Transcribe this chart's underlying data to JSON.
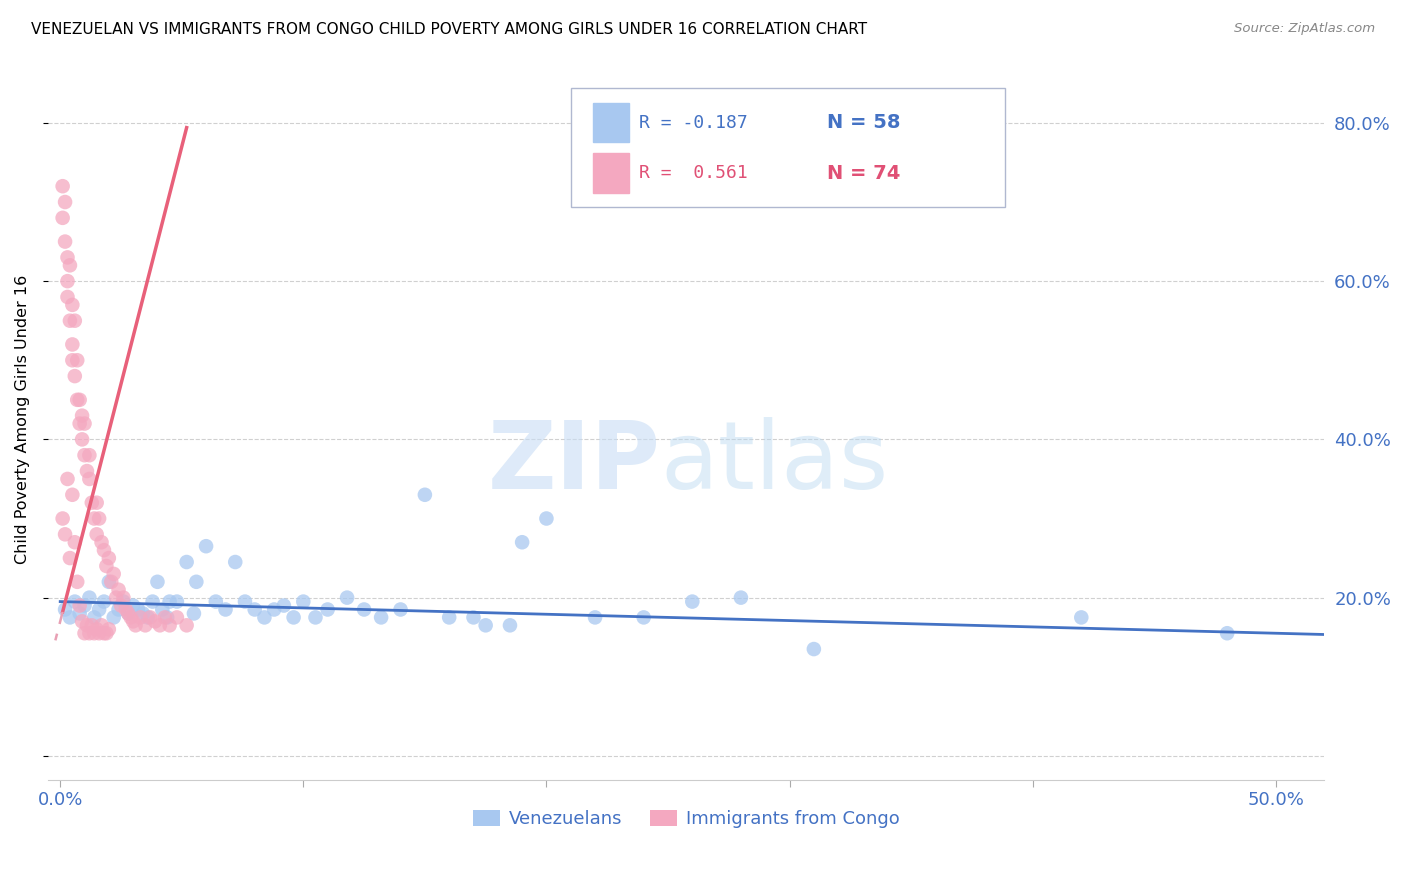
{
  "title": "VENEZUELAN VS IMMIGRANTS FROM CONGO CHILD POVERTY AMONG GIRLS UNDER 16 CORRELATION CHART",
  "source": "Source: ZipAtlas.com",
  "ylabel": "Child Poverty Among Girls Under 16",
  "y_ticks": [
    0.0,
    0.2,
    0.4,
    0.6,
    0.8
  ],
  "y_tick_labels_right": [
    "",
    "20.0%",
    "40.0%",
    "60.0%",
    "80.0%"
  ],
  "xlim": [
    -0.005,
    0.52
  ],
  "ylim": [
    -0.03,
    0.88
  ],
  "venezuelan_color": "#a8c8f0",
  "congo_color": "#f4a8c0",
  "trend_venezuelan_color": "#4472c4",
  "trend_congo_color": "#e8607a",
  "trend_congo_dashed_color": "#e8a0b4",
  "legend_R_venezuelan": "R = -0.187",
  "legend_N_venezuelan": "N = 58",
  "legend_R_congo": "R =  0.561",
  "legend_N_congo": "N = 74",
  "venezuelan_x": [
    0.002,
    0.004,
    0.006,
    0.008,
    0.01,
    0.012,
    0.014,
    0.016,
    0.018,
    0.02,
    0.022,
    0.024,
    0.026,
    0.028,
    0.03,
    0.032,
    0.034,
    0.036,
    0.038,
    0.04,
    0.042,
    0.044,
    0.048,
    0.052,
    0.056,
    0.06,
    0.064,
    0.068,
    0.072,
    0.076,
    0.08,
    0.084,
    0.088,
    0.092,
    0.096,
    0.1,
    0.105,
    0.11,
    0.118,
    0.125,
    0.132,
    0.14,
    0.15,
    0.16,
    0.17,
    0.185,
    0.2,
    0.22,
    0.24,
    0.26,
    0.175,
    0.19,
    0.28,
    0.31,
    0.42,
    0.48,
    0.045,
    0.055
  ],
  "venezuelan_y": [
    0.185,
    0.175,
    0.195,
    0.18,
    0.19,
    0.2,
    0.175,
    0.185,
    0.195,
    0.22,
    0.175,
    0.185,
    0.195,
    0.18,
    0.19,
    0.185,
    0.18,
    0.175,
    0.195,
    0.22,
    0.185,
    0.175,
    0.195,
    0.245,
    0.22,
    0.265,
    0.195,
    0.185,
    0.245,
    0.195,
    0.185,
    0.175,
    0.185,
    0.19,
    0.175,
    0.195,
    0.175,
    0.185,
    0.2,
    0.185,
    0.175,
    0.185,
    0.33,
    0.175,
    0.175,
    0.165,
    0.3,
    0.175,
    0.175,
    0.195,
    0.165,
    0.27,
    0.2,
    0.135,
    0.175,
    0.155,
    0.195,
    0.18
  ],
  "congo_x": [
    0.001,
    0.001,
    0.002,
    0.002,
    0.003,
    0.003,
    0.003,
    0.004,
    0.004,
    0.005,
    0.005,
    0.005,
    0.006,
    0.006,
    0.007,
    0.007,
    0.008,
    0.008,
    0.009,
    0.009,
    0.01,
    0.01,
    0.011,
    0.012,
    0.012,
    0.013,
    0.014,
    0.015,
    0.015,
    0.016,
    0.017,
    0.018,
    0.019,
    0.02,
    0.021,
    0.022,
    0.023,
    0.024,
    0.025,
    0.026,
    0.027,
    0.028,
    0.029,
    0.03,
    0.031,
    0.033,
    0.035,
    0.037,
    0.039,
    0.041,
    0.043,
    0.045,
    0.048,
    0.052,
    0.001,
    0.002,
    0.003,
    0.004,
    0.005,
    0.006,
    0.007,
    0.008,
    0.009,
    0.01,
    0.011,
    0.012,
    0.013,
    0.014,
    0.015,
    0.016,
    0.017,
    0.018,
    0.019,
    0.02
  ],
  "congo_y": [
    0.72,
    0.68,
    0.7,
    0.65,
    0.63,
    0.6,
    0.58,
    0.62,
    0.55,
    0.57,
    0.52,
    0.5,
    0.55,
    0.48,
    0.45,
    0.5,
    0.42,
    0.45,
    0.4,
    0.43,
    0.38,
    0.42,
    0.36,
    0.35,
    0.38,
    0.32,
    0.3,
    0.32,
    0.28,
    0.3,
    0.27,
    0.26,
    0.24,
    0.25,
    0.22,
    0.23,
    0.2,
    0.21,
    0.19,
    0.2,
    0.185,
    0.18,
    0.175,
    0.17,
    0.165,
    0.175,
    0.165,
    0.175,
    0.17,
    0.165,
    0.175,
    0.165,
    0.175,
    0.165,
    0.3,
    0.28,
    0.35,
    0.25,
    0.33,
    0.27,
    0.22,
    0.19,
    0.17,
    0.155,
    0.165,
    0.155,
    0.165,
    0.155,
    0.16,
    0.155,
    0.165,
    0.155,
    0.155,
    0.16
  ]
}
